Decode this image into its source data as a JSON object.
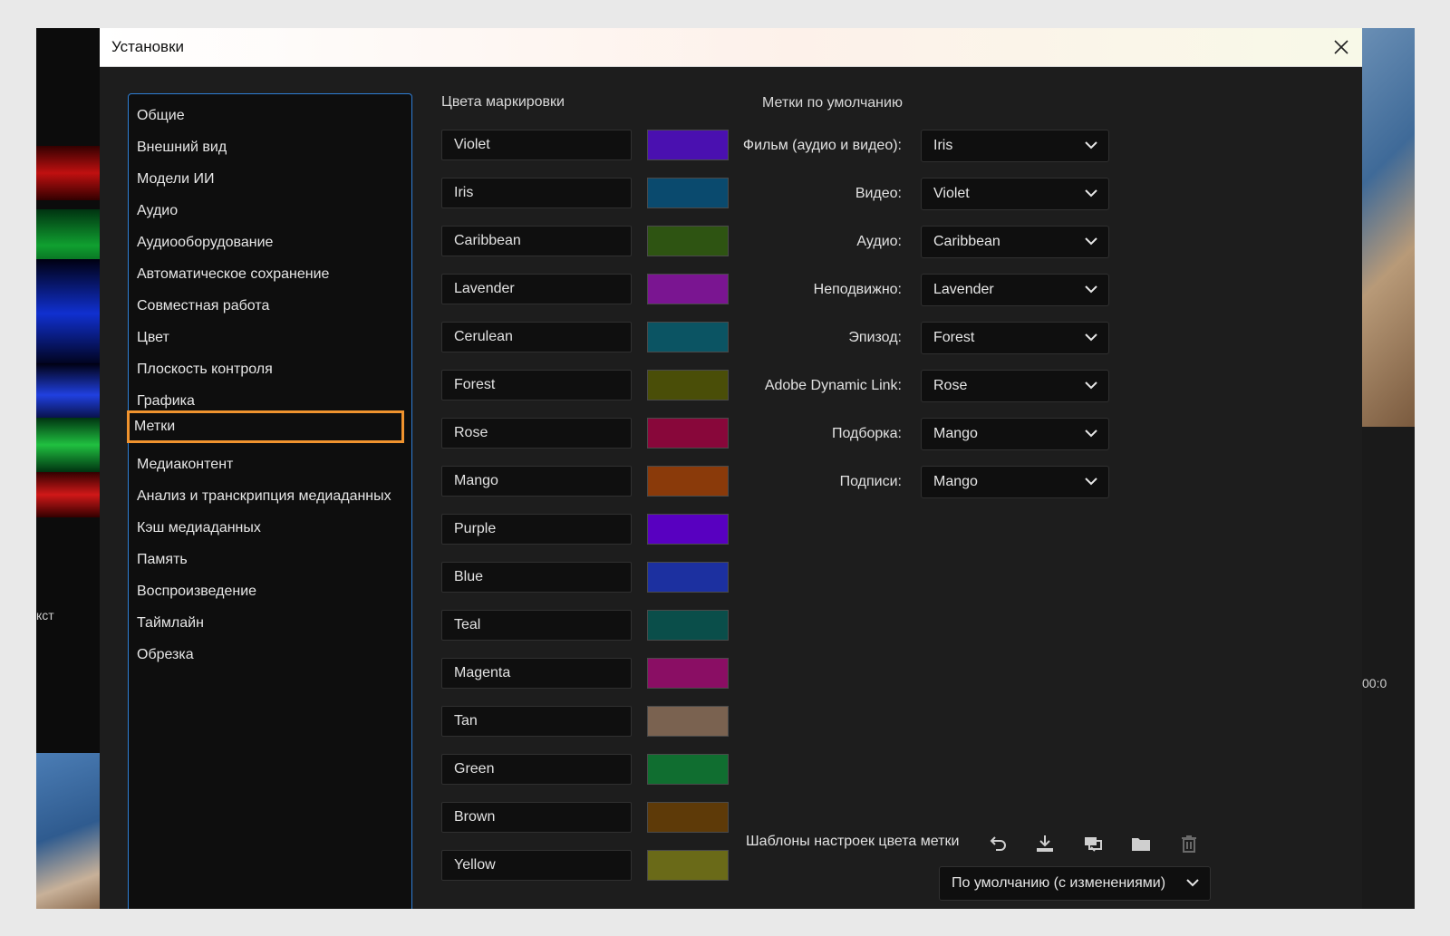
{
  "dialog": {
    "title": "Установки"
  },
  "sidebar": {
    "items": [
      {
        "label": "Общие"
      },
      {
        "label": "Внешний вид"
      },
      {
        "label": "Модели ИИ"
      },
      {
        "label": "Аудио"
      },
      {
        "label": "Аудиооборудование"
      },
      {
        "label": "Автоматическое сохранение"
      },
      {
        "label": "Совместная работа"
      },
      {
        "label": "Цвет"
      },
      {
        "label": "Плоскость контроля"
      },
      {
        "label": "Графика"
      },
      {
        "label": "Метки",
        "active": true
      },
      {
        "label": "Медиаконтент"
      },
      {
        "label": "Анализ и транскрипция медиаданных"
      },
      {
        "label": "Кэш медиаданных"
      },
      {
        "label": "Память"
      },
      {
        "label": "Воспроизведение"
      },
      {
        "label": "Таймлайн"
      },
      {
        "label": "Обрезка"
      }
    ]
  },
  "label_colors": {
    "title": "Цвета маркировки",
    "items": [
      {
        "name": "Violet",
        "color": "#4a10b0"
      },
      {
        "name": "Iris",
        "color": "#0a4a6e"
      },
      {
        "name": "Caribbean",
        "color": "#2e5412"
      },
      {
        "name": "Lavender",
        "color": "#7a1591"
      },
      {
        "name": "Cerulean",
        "color": "#0b5463"
      },
      {
        "name": "Forest",
        "color": "#4a4e08"
      },
      {
        "name": "Rose",
        "color": "#88073a"
      },
      {
        "name": "Mango",
        "color": "#8a3a0a"
      },
      {
        "name": "Purple",
        "color": "#5800c0"
      },
      {
        "name": "Blue",
        "color": "#1c30a0"
      },
      {
        "name": "Teal",
        "color": "#0a4e4a"
      },
      {
        "name": "Magenta",
        "color": "#8a0e64"
      },
      {
        "name": "Tan",
        "color": "#7a6250"
      },
      {
        "name": "Green",
        "color": "#106e30"
      },
      {
        "name": "Brown",
        "color": "#5e3a08"
      },
      {
        "name": "Yellow",
        "color": "#6a6a18"
      }
    ]
  },
  "default_labels": {
    "title": "Метки по умолчанию",
    "items": [
      {
        "label": "Фильм (аудио и видео):",
        "value": "Iris"
      },
      {
        "label": "Видео:",
        "value": "Violet"
      },
      {
        "label": "Аудио:",
        "value": "Caribbean"
      },
      {
        "label": "Неподвижно:",
        "value": "Lavender"
      },
      {
        "label": "Эпизод:",
        "value": "Forest"
      },
      {
        "label": "Adobe Dynamic Link:",
        "value": "Rose"
      },
      {
        "label": "Подборка:",
        "value": "Mango"
      },
      {
        "label": "Подписи:",
        "value": "Mango"
      }
    ]
  },
  "presets": {
    "label": "Шаблоны настроек цвета метки",
    "selected": "По умолчанию (с изменениями)",
    "icons": [
      "undo-icon",
      "download-icon",
      "import-icon",
      "folder-icon",
      "trash-icon"
    ]
  },
  "background": {
    "left_text": "кст",
    "right_text": "00:0"
  },
  "colors": {
    "accent_blue": "#2f7fd6",
    "active_outline": "#f0932e"
  }
}
